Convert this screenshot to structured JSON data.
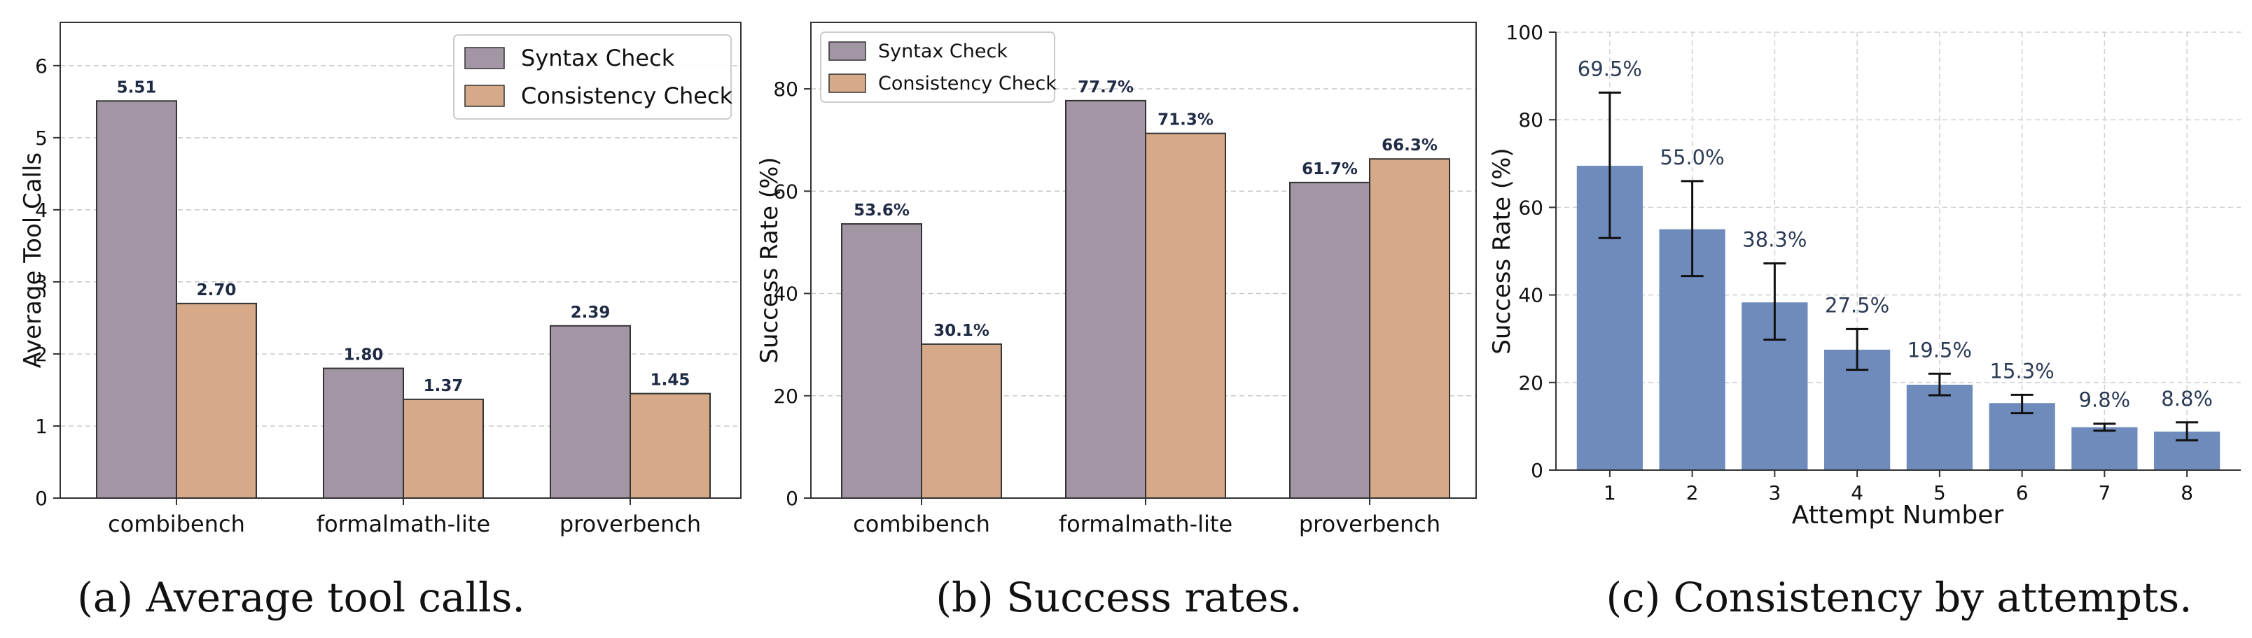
{
  "colors": {
    "syntax": "#a296a4",
    "consistency": "#d6aa88",
    "attempt": "#6e8bbb",
    "data_label_dark": "#1f2a44",
    "data_label_light": "#2b3a55"
  },
  "chart_data": [
    {
      "type": "bar",
      "id": "a",
      "categories": [
        "combibench",
        "formalmath-lite",
        "proverbench"
      ],
      "series": [
        {
          "name": "Syntax Check",
          "values": [
            5.51,
            1.8,
            2.39
          ],
          "labels": [
            "5.51",
            "1.80",
            "2.39"
          ]
        },
        {
          "name": "Consistency Check",
          "values": [
            2.7,
            1.37,
            1.45
          ],
          "labels": [
            "2.70",
            "1.37",
            "1.45"
          ]
        }
      ],
      "xlabel": "",
      "ylabel": "Average Tool Calls",
      "ylim": [
        0,
        6.6
      ],
      "yticks": [
        "0",
        "1",
        "2",
        "3",
        "4",
        "5",
        "6"
      ],
      "grid": true,
      "legend": "top-right",
      "caption": "(a) Average tool calls."
    },
    {
      "type": "bar",
      "id": "b",
      "categories": [
        "combibench",
        "formalmath-lite",
        "proverbench"
      ],
      "series": [
        {
          "name": "Syntax Check",
          "values": [
            53.6,
            77.7,
            61.7
          ],
          "labels": [
            "53.6%",
            "77.7%",
            "61.7%"
          ]
        },
        {
          "name": "Consistency Check",
          "values": [
            30.1,
            71.3,
            66.3
          ],
          "labels": [
            "30.1%",
            "71.3%",
            "66.3%"
          ]
        }
      ],
      "xlabel": "",
      "ylabel": "Success Rate (%)",
      "ylim": [
        0,
        93
      ],
      "yticks": [
        "0",
        "20",
        "40",
        "60",
        "80"
      ],
      "grid": true,
      "legend": "top-left",
      "caption": "(b) Success rates."
    },
    {
      "type": "bar",
      "id": "c",
      "categories": [
        "1",
        "2",
        "3",
        "4",
        "5",
        "6",
        "7",
        "8"
      ],
      "series": [
        {
          "values": [
            69.5,
            55.0,
            38.3,
            27.5,
            19.5,
            15.3,
            9.8,
            8.8
          ],
          "labels": [
            "69.5%",
            "55.0%",
            "38.3%",
            "27.5%",
            "19.5%",
            "15.3%",
            "9.8%",
            "8.8%"
          ],
          "error_low": [
            53.0,
            44.3,
            29.8,
            22.9,
            17.1,
            13.0,
            9.0,
            6.8
          ],
          "error_high": [
            86.2,
            66.0,
            47.2,
            32.2,
            22.0,
            17.2,
            10.6,
            10.9
          ]
        }
      ],
      "xlabel": "Attempt Number",
      "ylabel": "Success Rate (%)",
      "ylim": [
        0,
        100
      ],
      "yticks": [
        "0",
        "20",
        "40",
        "60",
        "80",
        "100"
      ],
      "grid": true,
      "caption": "(c) Consistency by attempts."
    }
  ]
}
